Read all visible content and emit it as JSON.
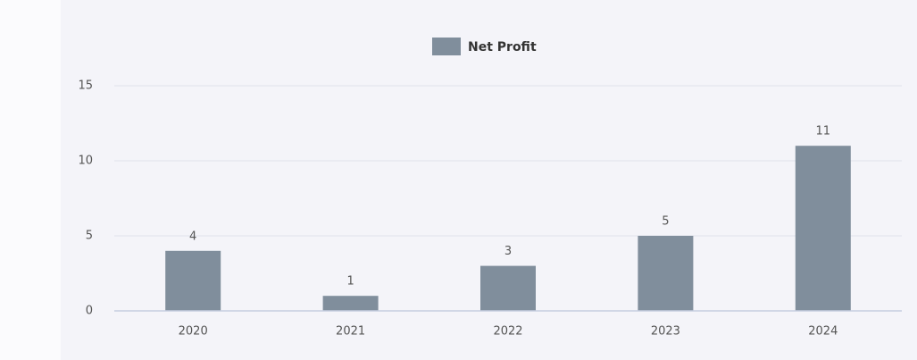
{
  "chart_data": {
    "type": "bar",
    "legend": "Net Profit",
    "categories": [
      "2020",
      "2021",
      "2022",
      "2023",
      "2024"
    ],
    "values": [
      4,
      1,
      3,
      5,
      11
    ],
    "color": "#808e9c",
    "ylim": [
      0,
      15
    ],
    "yticks": [
      0,
      5,
      10,
      15
    ],
    "grid": true,
    "legend_position": "top"
  }
}
